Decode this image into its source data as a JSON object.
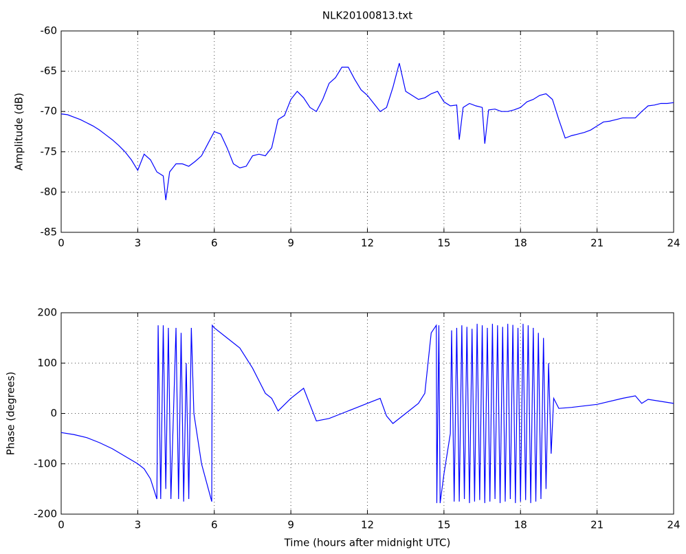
{
  "chart_data": [
    {
      "type": "line",
      "title": "NLK20100813.txt",
      "ylabel": "Amplitude (dB)",
      "x": [
        0,
        0.25,
        0.5,
        0.75,
        1,
        1.25,
        1.5,
        1.75,
        2,
        2.25,
        2.5,
        2.75,
        3,
        3.25,
        3.5,
        3.75,
        4,
        4.1,
        4.25,
        4.5,
        4.75,
        5,
        5.25,
        5.5,
        5.75,
        6,
        6.25,
        6.5,
        6.75,
        7,
        7.25,
        7.5,
        7.75,
        8,
        8.25,
        8.5,
        8.75,
        9,
        9.25,
        9.5,
        9.75,
        10,
        10.25,
        10.5,
        10.75,
        11,
        11.25,
        11.5,
        11.75,
        12,
        12.25,
        12.5,
        12.75,
        13,
        13.25,
        13.5,
        13.75,
        14,
        14.25,
        14.5,
        14.75,
        15,
        15.25,
        15.5,
        15.6,
        15.75,
        16,
        16.25,
        16.5,
        16.6,
        16.75,
        17,
        17.25,
        17.5,
        17.75,
        18,
        18.25,
        18.5,
        18.75,
        19,
        19.25,
        19.5,
        19.75,
        20,
        20.25,
        20.5,
        20.75,
        21,
        21.25,
        21.5,
        21.75,
        22,
        22.25,
        22.5,
        22.75,
        23,
        23.25,
        23.5,
        23.75,
        24
      ],
      "values": [
        -70.3,
        -70.4,
        -70.7,
        -71.0,
        -71.4,
        -71.8,
        -72.3,
        -72.9,
        -73.5,
        -74.2,
        -75.0,
        -76.0,
        -77.3,
        -75.3,
        -76.0,
        -77.5,
        -78.0,
        -81,
        -77.5,
        -76.5,
        -76.5,
        -76.8,
        -76.2,
        -75.5,
        -74.0,
        -72.5,
        -72.8,
        -74.5,
        -76.5,
        -77.0,
        -76.8,
        -75.5,
        -75.3,
        -75.5,
        -74.5,
        -71.0,
        -70.5,
        -68.5,
        -67.5,
        -68.3,
        -69.5,
        -70.0,
        -68.5,
        -66.5,
        -65.8,
        -64.5,
        -64.5,
        -66.0,
        -67.3,
        -68.0,
        -69.0,
        -70.0,
        -69.5,
        -67.0,
        -64.0,
        -67.5,
        -68.0,
        -68.5,
        -68.3,
        -67.8,
        -67.5,
        -68.8,
        -69.3,
        -69.2,
        -73.5,
        -69.5,
        -69.0,
        -69.3,
        -69.5,
        -74,
        -69.8,
        -69.7,
        -70.0,
        -70.0,
        -69.8,
        -69.5,
        -68.8,
        -68.5,
        -68.0,
        -67.8,
        -68.5,
        -71.0,
        -73.3,
        -73.0,
        -72.8,
        -72.6,
        -72.3,
        -71.8,
        -71.3,
        -71.2,
        -71.0,
        -70.8,
        -70.8,
        -70.8,
        -70.0,
        -69.3,
        -69.2,
        -69.0,
        -69.0,
        -68.9
      ],
      "color": "#0000ff",
      "xlim": [
        0,
        24
      ],
      "xticks": [
        0,
        3,
        6,
        9,
        12,
        15,
        18,
        21,
        24
      ],
      "ylim": [
        -85,
        -60
      ],
      "yticks": [
        -85,
        -80,
        -75,
        -70,
        -65,
        -60
      ],
      "grid": true
    },
    {
      "type": "line",
      "xlabel": "Time (hours after midnight UTC)",
      "ylabel": "Phase (degrees)",
      "x": [
        0,
        0.5,
        1,
        1.5,
        2,
        2.5,
        3,
        3.25,
        3.5,
        3.75,
        3.8,
        3.9,
        4,
        4.1,
        4.2,
        4.3,
        4.4,
        4.5,
        4.6,
        4.7,
        4.8,
        4.9,
        5,
        5.1,
        5.2,
        5.5,
        5.9,
        5.92,
        6,
        6.5,
        7,
        7.5,
        8,
        8.25,
        8.5,
        9,
        9.5,
        10,
        10.5,
        11,
        11.5,
        12,
        12.5,
        12.75,
        13,
        13.5,
        14,
        14.25,
        14.5,
        14.7,
        14.72,
        14.8,
        14.85,
        15,
        15.25,
        15.3,
        15.4,
        15.5,
        15.6,
        15.7,
        15.8,
        15.9,
        16,
        16.1,
        16.2,
        16.3,
        16.4,
        16.5,
        16.6,
        16.7,
        16.8,
        16.9,
        17,
        17.1,
        17.2,
        17.3,
        17.4,
        17.5,
        17.6,
        17.7,
        17.8,
        17.9,
        18,
        18.1,
        18.2,
        18.3,
        18.4,
        18.5,
        18.6,
        18.7,
        18.8,
        18.9,
        19,
        19.1,
        19.2,
        19.3,
        19.5,
        20,
        21,
        22,
        22.5,
        22.75,
        23,
        24
      ],
      "values": [
        -38,
        -42,
        -48,
        -58,
        -70,
        -85,
        -100,
        -110,
        -130,
        -170,
        175,
        -170,
        175,
        -150,
        170,
        -170,
        0,
        170,
        -170,
        160,
        -175,
        100,
        -170,
        170,
        0,
        -100,
        -175,
        175,
        170,
        150,
        130,
        90,
        40,
        30,
        5,
        30,
        50,
        -15,
        -10,
        0,
        10,
        20,
        30,
        -5,
        -20,
        0,
        20,
        40,
        160,
        175,
        -178,
        175,
        -178,
        -120,
        -40,
        165,
        -175,
        170,
        -175,
        175,
        -170,
        172,
        -178,
        168,
        -175,
        178,
        -172,
        175,
        -178,
        170,
        -175,
        178,
        -170,
        175,
        -178,
        172,
        -175,
        178,
        -170,
        176,
        -178,
        170,
        -175,
        178,
        -172,
        175,
        -178,
        170,
        -175,
        160,
        -170,
        150,
        -150,
        100,
        -80,
        30,
        10,
        12,
        18,
        30,
        35,
        20,
        28,
        20
      ],
      "color": "#0000ff",
      "xlim": [
        0,
        24
      ],
      "xticks": [
        0,
        3,
        6,
        9,
        12,
        15,
        18,
        21,
        24
      ],
      "ylim": [
        -200,
        200
      ],
      "yticks": [
        -200,
        -100,
        0,
        100,
        200
      ],
      "grid": true
    }
  ]
}
